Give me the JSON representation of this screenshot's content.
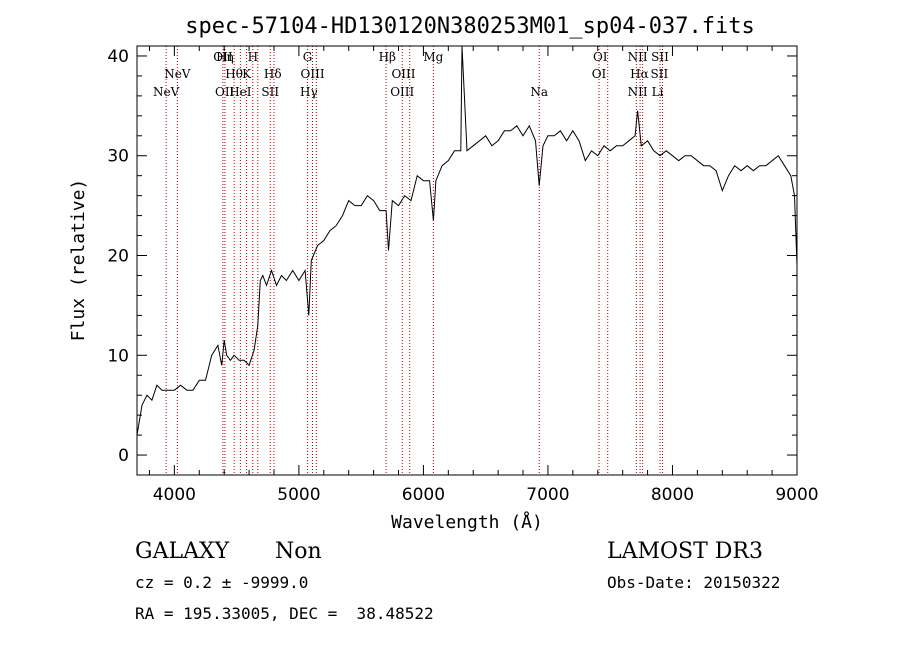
{
  "chart_data": {
    "type": "line",
    "title": "spec-57104-HD130120N380253M01_sp04-037.fits",
    "xlabel": "Wavelength (Å)",
    "ylabel": "Flux (relative)",
    "xlim": [
      3700,
      9000
    ],
    "ylim": [
      -2,
      41
    ],
    "xticks": [
      4000,
      5000,
      6000,
      7000,
      8000,
      9000
    ],
    "yticks": [
      0,
      10,
      20,
      30,
      40
    ],
    "grid": false,
    "series": [
      {
        "x": [
          3700,
          3740,
          3780,
          3820,
          3860,
          3900,
          3950,
          4000,
          4050,
          4100,
          4150,
          4200,
          4250,
          4300,
          4350,
          4380,
          4400,
          4420,
          4450,
          4480,
          4520,
          4560,
          4600,
          4640,
          4670,
          4690,
          4710,
          4740,
          4780,
          4820,
          4860,
          4900,
          4950,
          5000,
          5050,
          5080,
          5100,
          5150,
          5200,
          5250,
          5300,
          5350,
          5400,
          5450,
          5500,
          5550,
          5600,
          5650,
          5700,
          5720,
          5750,
          5800,
          5850,
          5900,
          5950,
          6000,
          6050,
          6080,
          6100,
          6150,
          6200,
          6250,
          6300,
          6310,
          6350,
          6400,
          6450,
          6500,
          6550,
          6600,
          6650,
          6700,
          6750,
          6800,
          6850,
          6900,
          6930,
          6960,
          7000,
          7050,
          7100,
          7150,
          7200,
          7250,
          7300,
          7350,
          7400,
          7450,
          7500,
          7550,
          7600,
          7650,
          7700,
          7720,
          7750,
          7800,
          7850,
          7900,
          7950,
          8000,
          8050,
          8100,
          8150,
          8200,
          8250,
          8300,
          8350,
          8400,
          8450,
          8500,
          8550,
          8600,
          8650,
          8700,
          8750,
          8800,
          8850,
          8900,
          8950,
          8980,
          9000
        ],
        "y": [
          2.0,
          5.0,
          6.0,
          5.5,
          7.0,
          6.5,
          6.5,
          6.5,
          7.0,
          6.5,
          6.5,
          7.5,
          7.5,
          10.0,
          11.0,
          9.0,
          11.5,
          10.0,
          9.5,
          10.0,
          9.5,
          9.5,
          9.0,
          10.5,
          13.0,
          17.5,
          18.0,
          17.0,
          18.5,
          17.0,
          18.0,
          17.5,
          18.5,
          17.5,
          18.5,
          14.0,
          19.5,
          21.0,
          21.5,
          22.5,
          23.0,
          24.0,
          25.5,
          25.0,
          25.0,
          26.0,
          25.5,
          24.5,
          24.5,
          20.5,
          25.5,
          25.0,
          26.0,
          25.5,
          28.0,
          27.5,
          27.5,
          23.5,
          27.5,
          29.0,
          29.5,
          30.5,
          30.5,
          41.0,
          30.5,
          31.0,
          31.5,
          32.0,
          31.0,
          31.5,
          32.5,
          32.5,
          33.0,
          32.0,
          33.0,
          31.5,
          27.0,
          31.0,
          32.0,
          32.0,
          32.5,
          31.5,
          32.5,
          31.5,
          29.5,
          30.5,
          30.0,
          31.0,
          30.5,
          31.0,
          31.0,
          31.5,
          32.0,
          34.5,
          31.0,
          31.5,
          30.5,
          30.0,
          30.5,
          30.0,
          29.5,
          30.0,
          30.0,
          29.5,
          29.0,
          29.0,
          28.5,
          26.5,
          28.0,
          29.0,
          28.5,
          29.0,
          28.5,
          29.0,
          29.0,
          29.5,
          30.0,
          29.0,
          28.0,
          26.0,
          19.0
        ]
      }
    ],
    "lines": [
      {
        "label": "NeV",
        "w": 3934,
        "row": 2
      },
      {
        "label": "NeV",
        "w": 4024,
        "row": 1
      },
      {
        "label": "OII",
        "w": 4390,
        "row": 0
      },
      {
        "label": "Hη",
        "w": 4406,
        "row": 0
      },
      {
        "label": "OII",
        "w": 4404,
        "row": 2
      },
      {
        "label": "Hθ",
        "w": 4480,
        "row": 1
      },
      {
        "label": "HeI",
        "w": 4530,
        "row": 2
      },
      {
        "label": "H",
        "w": 4630,
        "row": 0
      },
      {
        "label": "K",
        "w": 4580,
        "row": 1
      },
      {
        "label": "Hδ",
        "w": 4790,
        "row": 1
      },
      {
        "label": "SII",
        "w": 4770,
        "row": 2
      },
      {
        "label": "G",
        "w": 5070,
        "row": 0
      },
      {
        "label": "OIII",
        "w": 5110,
        "row": 1
      },
      {
        "label": "Hγ",
        "w": 5080,
        "row": 2
      },
      {
        "label": "Hβ",
        "w": 5710,
        "row": 0
      },
      {
        "label": "OIII",
        "w": 5840,
        "row": 1
      },
      {
        "label": "OIII",
        "w": 5830,
        "row": 2
      },
      {
        "label": "Mg",
        "w": 6080,
        "row": 0
      },
      {
        "label": "Na",
        "w": 6930,
        "row": 2
      },
      {
        "label": "OI",
        "w": 7420,
        "row": 0
      },
      {
        "label": "OI",
        "w": 7410,
        "row": 1
      },
      {
        "label": "NII",
        "w": 7720,
        "row": 0
      },
      {
        "label": "Hα",
        "w": 7735,
        "row": 1
      },
      {
        "label": "NII",
        "w": 7720,
        "row": 2
      },
      {
        "label": "SII",
        "w": 7900,
        "row": 0
      },
      {
        "label": "SII",
        "w": 7895,
        "row": 1
      },
      {
        "label": "Li",
        "w": 7880,
        "row": 2
      }
    ],
    "line_marker_positions": [
      3934,
      4024,
      4390,
      4406,
      4480,
      4530,
      4580,
      4630,
      4670,
      4770,
      4800,
      5070,
      5110,
      5140,
      5700,
      5830,
      5890,
      6080,
      6930,
      7410,
      7480,
      7710,
      7740,
      7760,
      7900,
      7920
    ]
  },
  "info": {
    "object_class": "GALAXY",
    "subclass": "Non",
    "survey": "LAMOST DR3",
    "cz": "cz = 0.2 ± -9999.0",
    "obs_date": "Obs-Date: 20150322",
    "coords": "RA = 195.33005, DEC =  38.48522"
  },
  "colors": {
    "spectrum": "#000000",
    "line_markers": "#b00000",
    "background": "#ffffff"
  }
}
